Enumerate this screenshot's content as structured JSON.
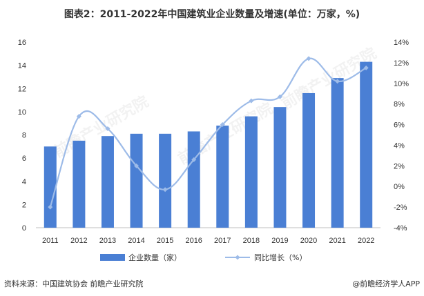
{
  "title": "图表2：2011-2022年中国建筑业企业数量及增速(单位：万家，%)",
  "source": "资料来源：中国建筑协会 前瞻产业研究院",
  "brand": "@前瞻经济学人APP",
  "watermark": "前瞻产业研究院",
  "colors": {
    "bar": "#4a7fd4",
    "line": "#9dbbe8",
    "axis_text": "#333333",
    "axis_line": "#bfbfbf"
  },
  "chart_data": {
    "type": "bar",
    "categories": [
      "2011",
      "2012",
      "2013",
      "2014",
      "2015",
      "2016",
      "2017",
      "2018",
      "2019",
      "2020",
      "2021",
      "2022"
    ],
    "series": [
      {
        "name": "企业数量（家）",
        "type": "bar",
        "axis": "left",
        "values": [
          7.0,
          7.5,
          7.9,
          8.1,
          8.1,
          8.3,
          8.8,
          9.6,
          10.4,
          11.6,
          12.9,
          14.3
        ]
      },
      {
        "name": "同比增长（%）",
        "type": "line",
        "axis": "right",
        "values": [
          -2.0,
          6.8,
          5.6,
          2.0,
          -0.3,
          2.6,
          6.0,
          8.3,
          8.7,
          12.4,
          10.2,
          11.5
        ]
      }
    ],
    "y_left": {
      "min": 0,
      "max": 16,
      "ticks": [
        "0",
        "2",
        "4",
        "6",
        "8",
        "10",
        "12",
        "14",
        "16"
      ]
    },
    "y_right": {
      "min": -4,
      "max": 14,
      "ticks": [
        "-4%",
        "-2%",
        "0%",
        "2%",
        "4%",
        "6%",
        "8%",
        "10%",
        "12%",
        "14%"
      ]
    },
    "legend_position": "bottom",
    "grid": false
  }
}
